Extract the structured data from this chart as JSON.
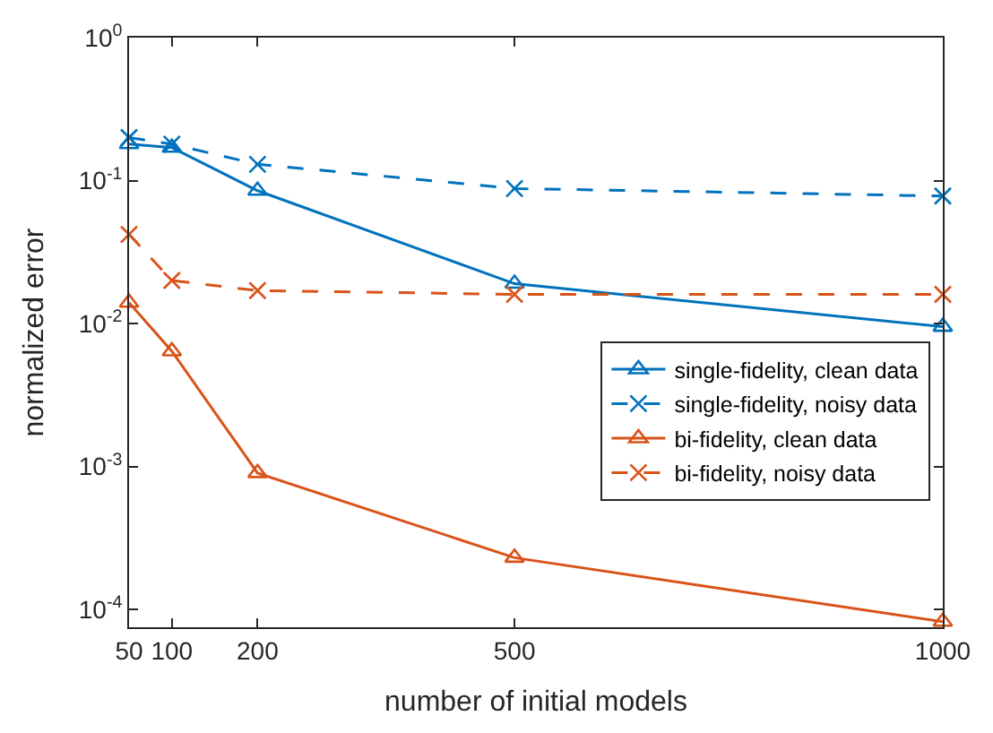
{
  "chart_data": {
    "type": "line",
    "xlabel": "number of initial models",
    "ylabel": "normalized error",
    "x": [
      50,
      100,
      200,
      500,
      1000
    ],
    "xlim": [
      50,
      1000
    ],
    "xticks": [
      {
        "value": 50,
        "label": "50"
      },
      {
        "value": 100,
        "label": "100"
      },
      200,
      500,
      1000
    ],
    "log": true,
    "ylim": [
      7.5e-05,
      1
    ],
    "yticks": [
      {
        "value": 0.0001,
        "label": "10$^{-4}$"
      },
      {
        "value": 0.001,
        "label": "10$^{-3}$"
      },
      {
        "value": 0.01,
        "label": "10$^{-2}$"
      },
      {
        "value": 0.1,
        "label": "10$^{-1}$"
      },
      {
        "value": 1,
        "label": "10$^{0}$"
      }
    ],
    "legend": "right",
    "series": [
      {
        "name": "single-fidelity, clean data",
        "color": "#0072bd",
        "marker": "triangle",
        "line_style": "solid",
        "values": [
          0.18,
          0.17,
          0.085,
          0.019,
          0.0095
        ]
      },
      {
        "name": "single-fidelity, noisy data",
        "color": "#0072bd",
        "marker": "cross",
        "line_style": "dashed",
        "values": [
          0.2,
          0.18,
          0.13,
          0.088,
          0.078
        ]
      },
      {
        "name": "bi-fidelity, clean data",
        "color": "#d95319",
        "marker": "triangle",
        "line_style": "solid",
        "values": [
          0.014,
          0.0064,
          0.0009,
          0.00023,
          8.2e-05
        ]
      },
      {
        "name": "bi-fidelity, noisy data",
        "color": "#d95319",
        "marker": "cross",
        "line_style": "dashed",
        "values": [
          0.042,
          0.02,
          0.017,
          0.016,
          0.016
        ]
      }
    ]
  }
}
